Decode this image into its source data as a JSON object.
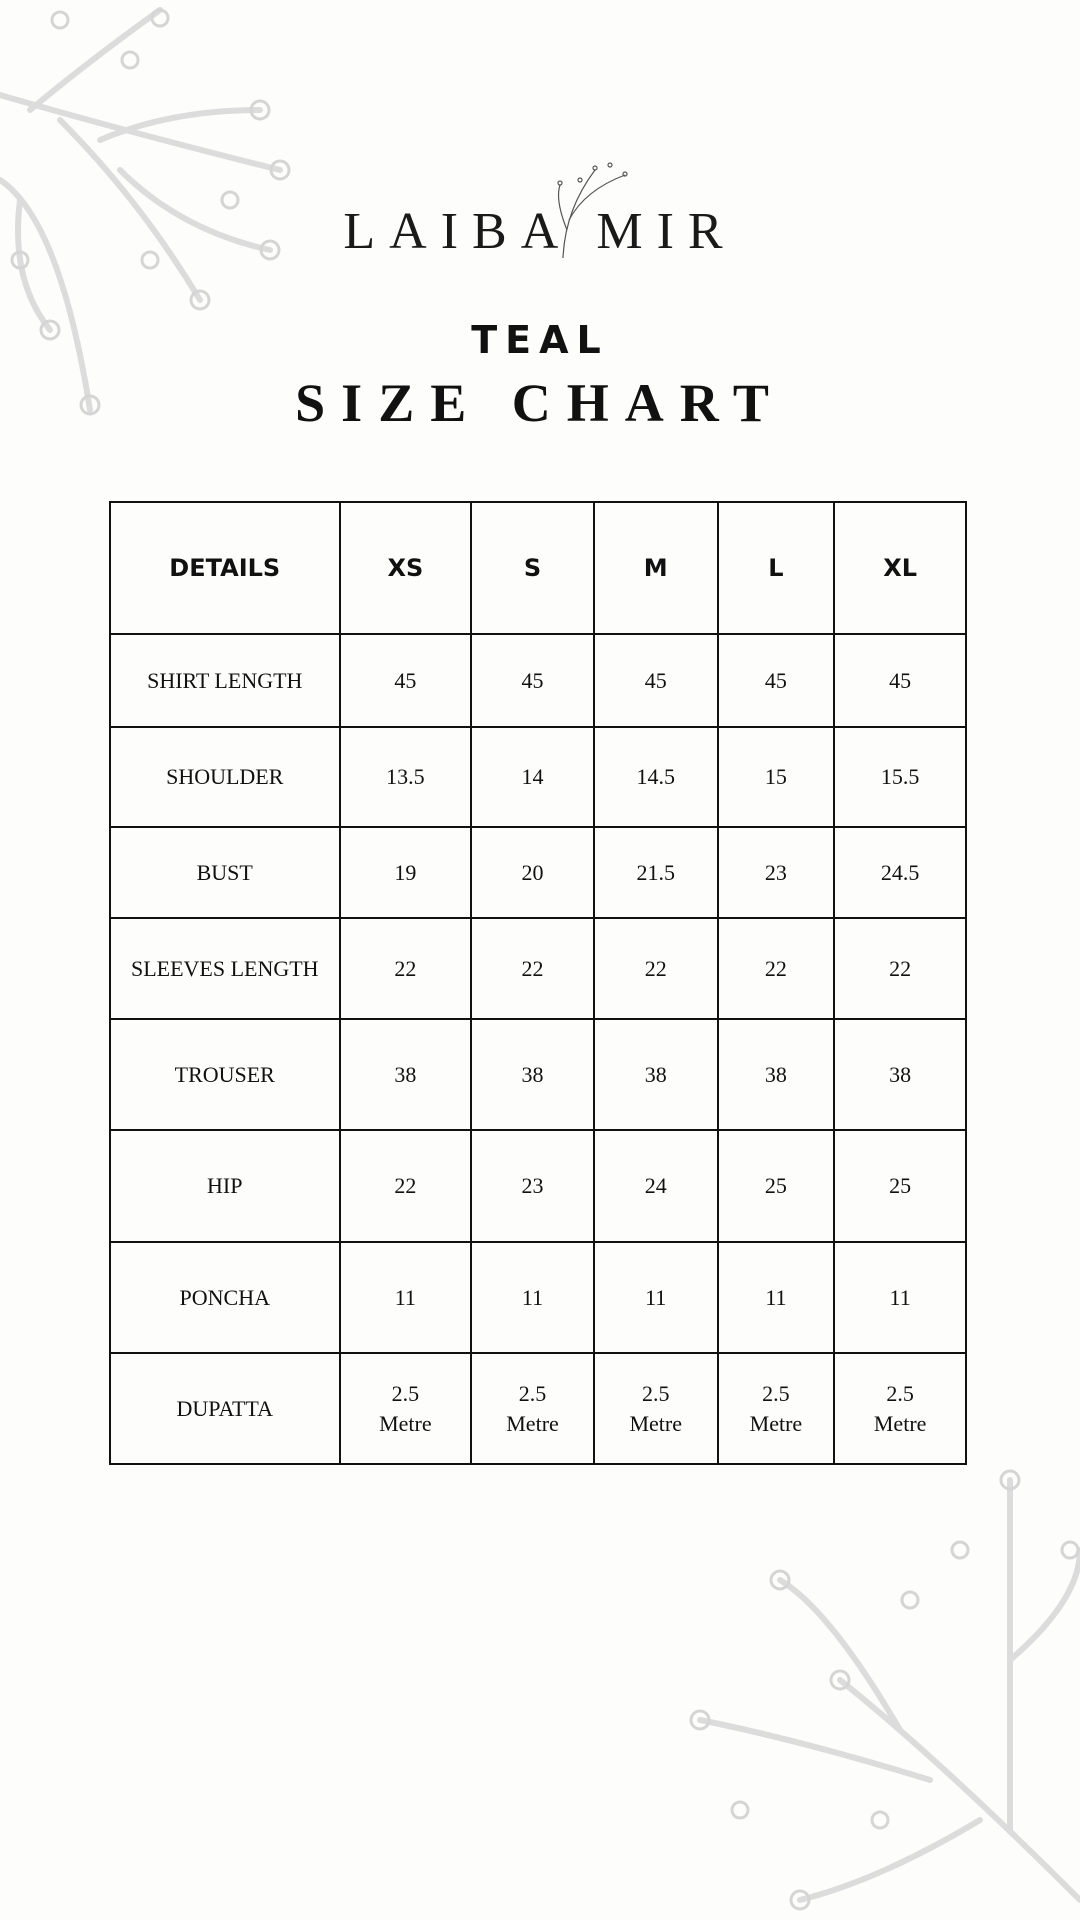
{
  "brand": {
    "logo_text": "LAIBA MIR"
  },
  "subtitle": "TEAL",
  "title": "SIZE CHART",
  "table": {
    "headers": [
      "DETAILS",
      "XS",
      "S",
      "M",
      "L",
      "XL"
    ],
    "rows": [
      {
        "label": "SHIRT LENGTH",
        "values": [
          "45",
          "45",
          "45",
          "45",
          "45"
        ]
      },
      {
        "label": "SHOULDER",
        "values": [
          "13.5",
          "14",
          "14.5",
          "15",
          "15.5"
        ]
      },
      {
        "label": "BUST",
        "values": [
          "19",
          "20",
          "21.5",
          "23",
          "24.5"
        ]
      },
      {
        "label": "SLEEVES LENGTH",
        "values": [
          "22",
          "22",
          "22",
          "22",
          "22"
        ]
      },
      {
        "label": "TROUSER",
        "values": [
          "38",
          "38",
          "38",
          "38",
          "38"
        ]
      },
      {
        "label": "HIP",
        "values": [
          "22",
          "23",
          "24",
          "25",
          "25"
        ]
      },
      {
        "label": "PONCHA",
        "values": [
          "11",
          "11",
          "11",
          "11",
          "11"
        ]
      },
      {
        "label": "DUPATTA",
        "values": [
          "2.5 Metre",
          "2.5 Metre",
          "2.5 Metre",
          "2.5 Metre",
          "2.5 Metre"
        ]
      }
    ]
  },
  "colors": {
    "background": "#fdfdfb",
    "text": "#111111",
    "decoration": "#dcdcdc"
  }
}
